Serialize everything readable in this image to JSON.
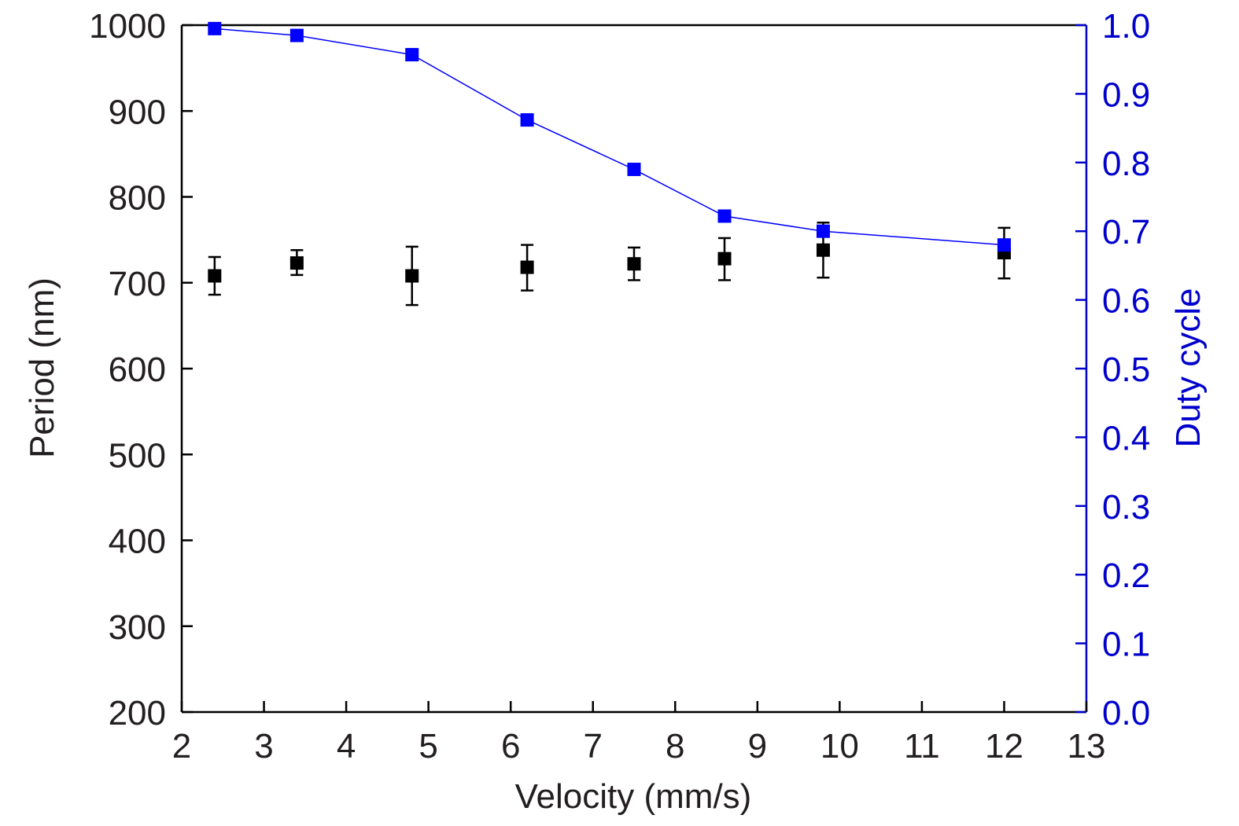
{
  "chart_data": {
    "type": "scatter",
    "xlabel": "Velocity (mm/s)",
    "ylabel": "Period (nm)",
    "y2label": "Duty cycle",
    "xlim": [
      2,
      13
    ],
    "ylim": [
      200,
      1000
    ],
    "y2lim": [
      0.0,
      1.0
    ],
    "x_ticks": [
      "2",
      "3",
      "4",
      "5",
      "6",
      "7",
      "8",
      "9",
      "10",
      "11",
      "12",
      "13"
    ],
    "y_ticks": [
      "200",
      "300",
      "400",
      "500",
      "600",
      "700",
      "800",
      "900",
      "1000"
    ],
    "y2_ticks": [
      "0.0",
      "0.1",
      "0.2",
      "0.3",
      "0.4",
      "0.5",
      "0.6",
      "0.7",
      "0.8",
      "0.9",
      "1.0"
    ],
    "grid": false,
    "series": [
      {
        "axis": "left",
        "color": "#000000",
        "marker": "square",
        "line": false,
        "points": [
          {
            "x": 2.4,
            "y": 708,
            "err_low": 22,
            "err_high": 22
          },
          {
            "x": 3.4,
            "y": 723,
            "err_low": 14,
            "err_high": 15
          },
          {
            "x": 4.8,
            "y": 708,
            "err_low": 34,
            "err_high": 34
          },
          {
            "x": 6.2,
            "y": 718,
            "err_low": 27,
            "err_high": 26
          },
          {
            "x": 7.5,
            "y": 722,
            "err_low": 19,
            "err_high": 19
          },
          {
            "x": 8.6,
            "y": 728,
            "err_low": 25,
            "err_high": 24
          },
          {
            "x": 9.8,
            "y": 738,
            "err_low": 32,
            "err_high": 32
          },
          {
            "x": 12.0,
            "y": 735,
            "err_low": 30,
            "err_high": 29
          }
        ]
      },
      {
        "axis": "right",
        "color": "#0000ff",
        "marker": "square",
        "line": true,
        "points": [
          {
            "x": 2.4,
            "y": 0.995
          },
          {
            "x": 3.4,
            "y": 0.985
          },
          {
            "x": 4.8,
            "y": 0.957
          },
          {
            "x": 6.2,
            "y": 0.862
          },
          {
            "x": 7.5,
            "y": 0.79
          },
          {
            "x": 8.6,
            "y": 0.722
          },
          {
            "x": 9.8,
            "y": 0.7
          },
          {
            "x": 12.0,
            "y": 0.68
          }
        ]
      }
    ],
    "colors": {
      "left_axis": "#231f20",
      "right_axis": "#0000cc"
    }
  }
}
